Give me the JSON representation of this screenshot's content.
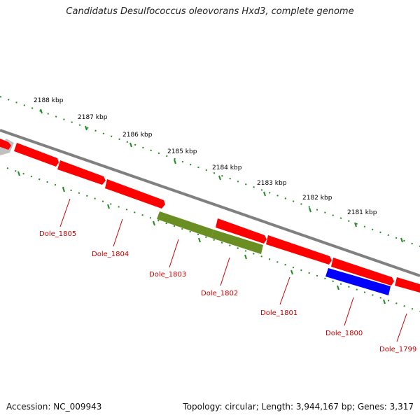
{
  "title": "Candidatus Desulfococcus oleovorans Hxd3, complete genome",
  "footer": {
    "accession": "Accession: NC_009943",
    "summary": "Topology: circular; Length: 3,944,167 bp; Genes: 3,317"
  },
  "ruler_labels": [
    "2188 kbp",
    "2187 kbp",
    "2186 kbp",
    "2185 kbp",
    "2184 kbp",
    "2183 kbp",
    "2182 kbp",
    "2181 kbp"
  ],
  "gene_labels": [
    "Dole_1805",
    "Dole_1804",
    "Dole_1803",
    "Dole_1802",
    "Dole_1801",
    "Dole_1800",
    "Dole_1799"
  ],
  "colors": {
    "backbone": "#808080",
    "forward_gene": "#ff0000",
    "partial_gene": "#c0c0c0",
    "olive_gene": "#6b8e23",
    "blue_gene": "#0000ff",
    "ruler": "#228b22",
    "label_text": "#cc0000"
  },
  "icons": {
    "gene-arrow": "arrow-segment",
    "tick": "dash"
  }
}
